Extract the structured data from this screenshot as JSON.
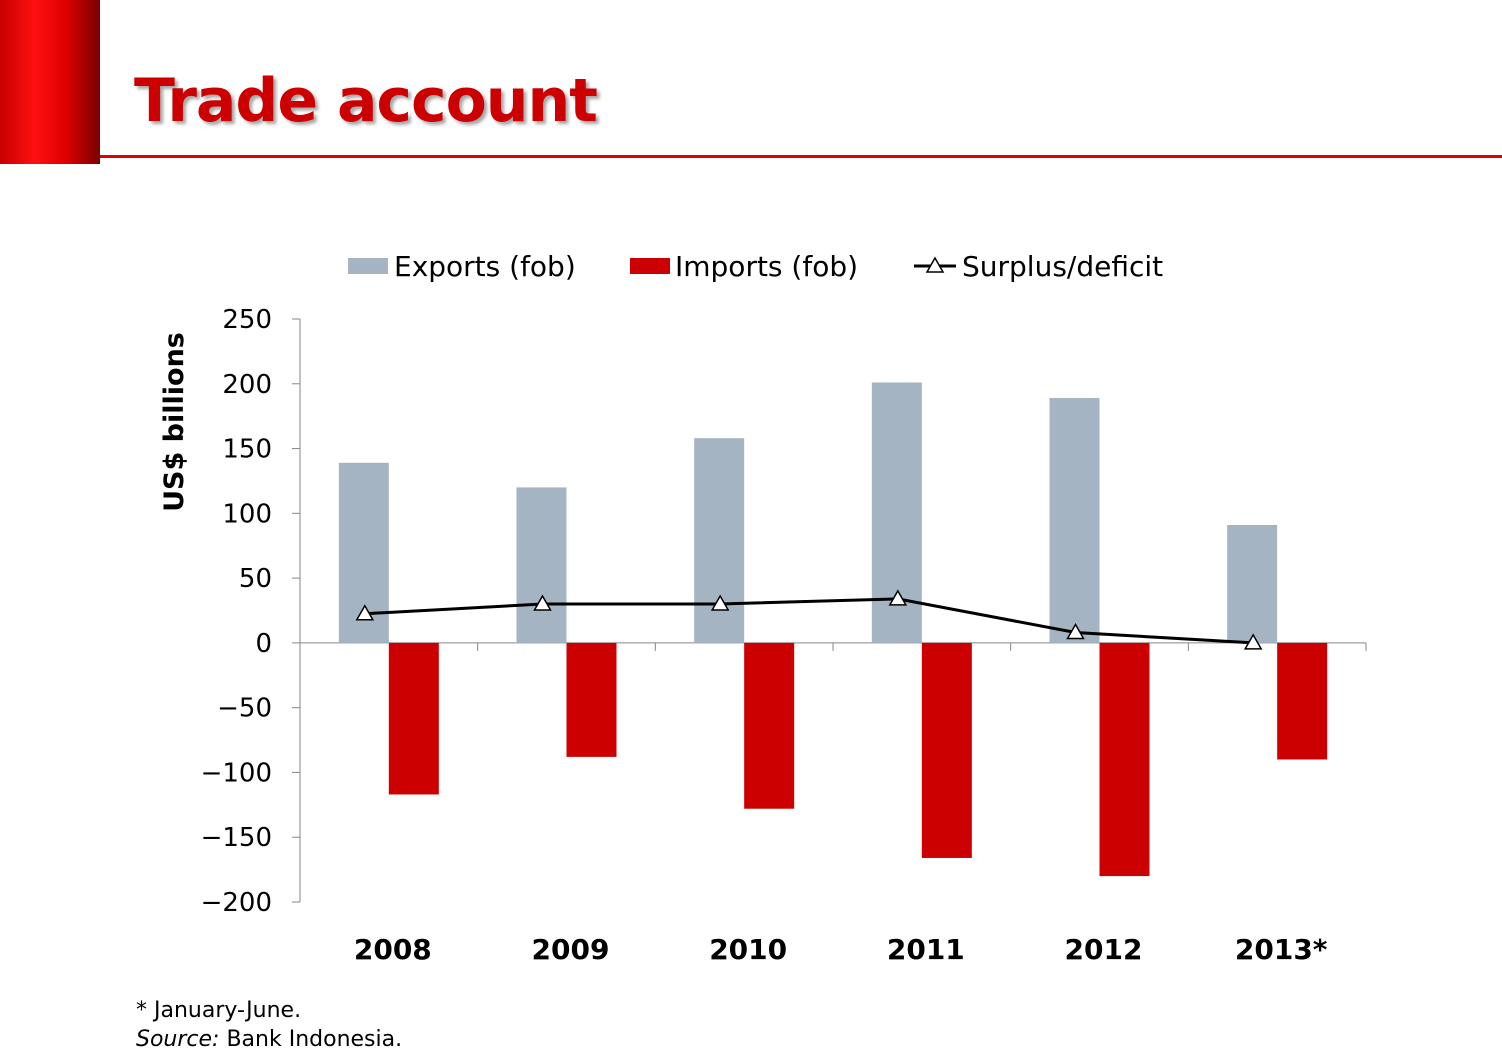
{
  "slide": {
    "title": "Trade account",
    "footnote": "* January-June.",
    "source_label": "Source:",
    "source_text": " Bank Indonesia."
  },
  "colors": {
    "accent": "#cc0000",
    "exports": "#a5b4c3",
    "imports": "#cc0000",
    "line": "#000000"
  },
  "chart_data": {
    "type": "bar",
    "categories": [
      "2008",
      "2009",
      "2010",
      "2011",
      "2012",
      "2013*"
    ],
    "series": [
      {
        "name": "Exports (fob)",
        "kind": "bar",
        "color": "#a5b4c3",
        "values": [
          139,
          120,
          158,
          201,
          189,
          91
        ]
      },
      {
        "name": "Imports (fob)",
        "kind": "bar",
        "color": "#cc0000",
        "values": [
          -117,
          -88,
          -128,
          -166,
          -180,
          -90
        ]
      },
      {
        "name": "Surplus/deficit",
        "kind": "line",
        "marker": "triangle",
        "color": "#000000",
        "values": [
          22.5,
          30,
          30,
          34,
          8,
          0
        ]
      }
    ],
    "ylabel": "US$ billions",
    "xlabel": "",
    "ylim": [
      -200,
      250
    ],
    "yticks": [
      250,
      200,
      150,
      100,
      50,
      0,
      -50,
      -100,
      -150,
      -200
    ],
    "legend": "top",
    "grid": false
  }
}
